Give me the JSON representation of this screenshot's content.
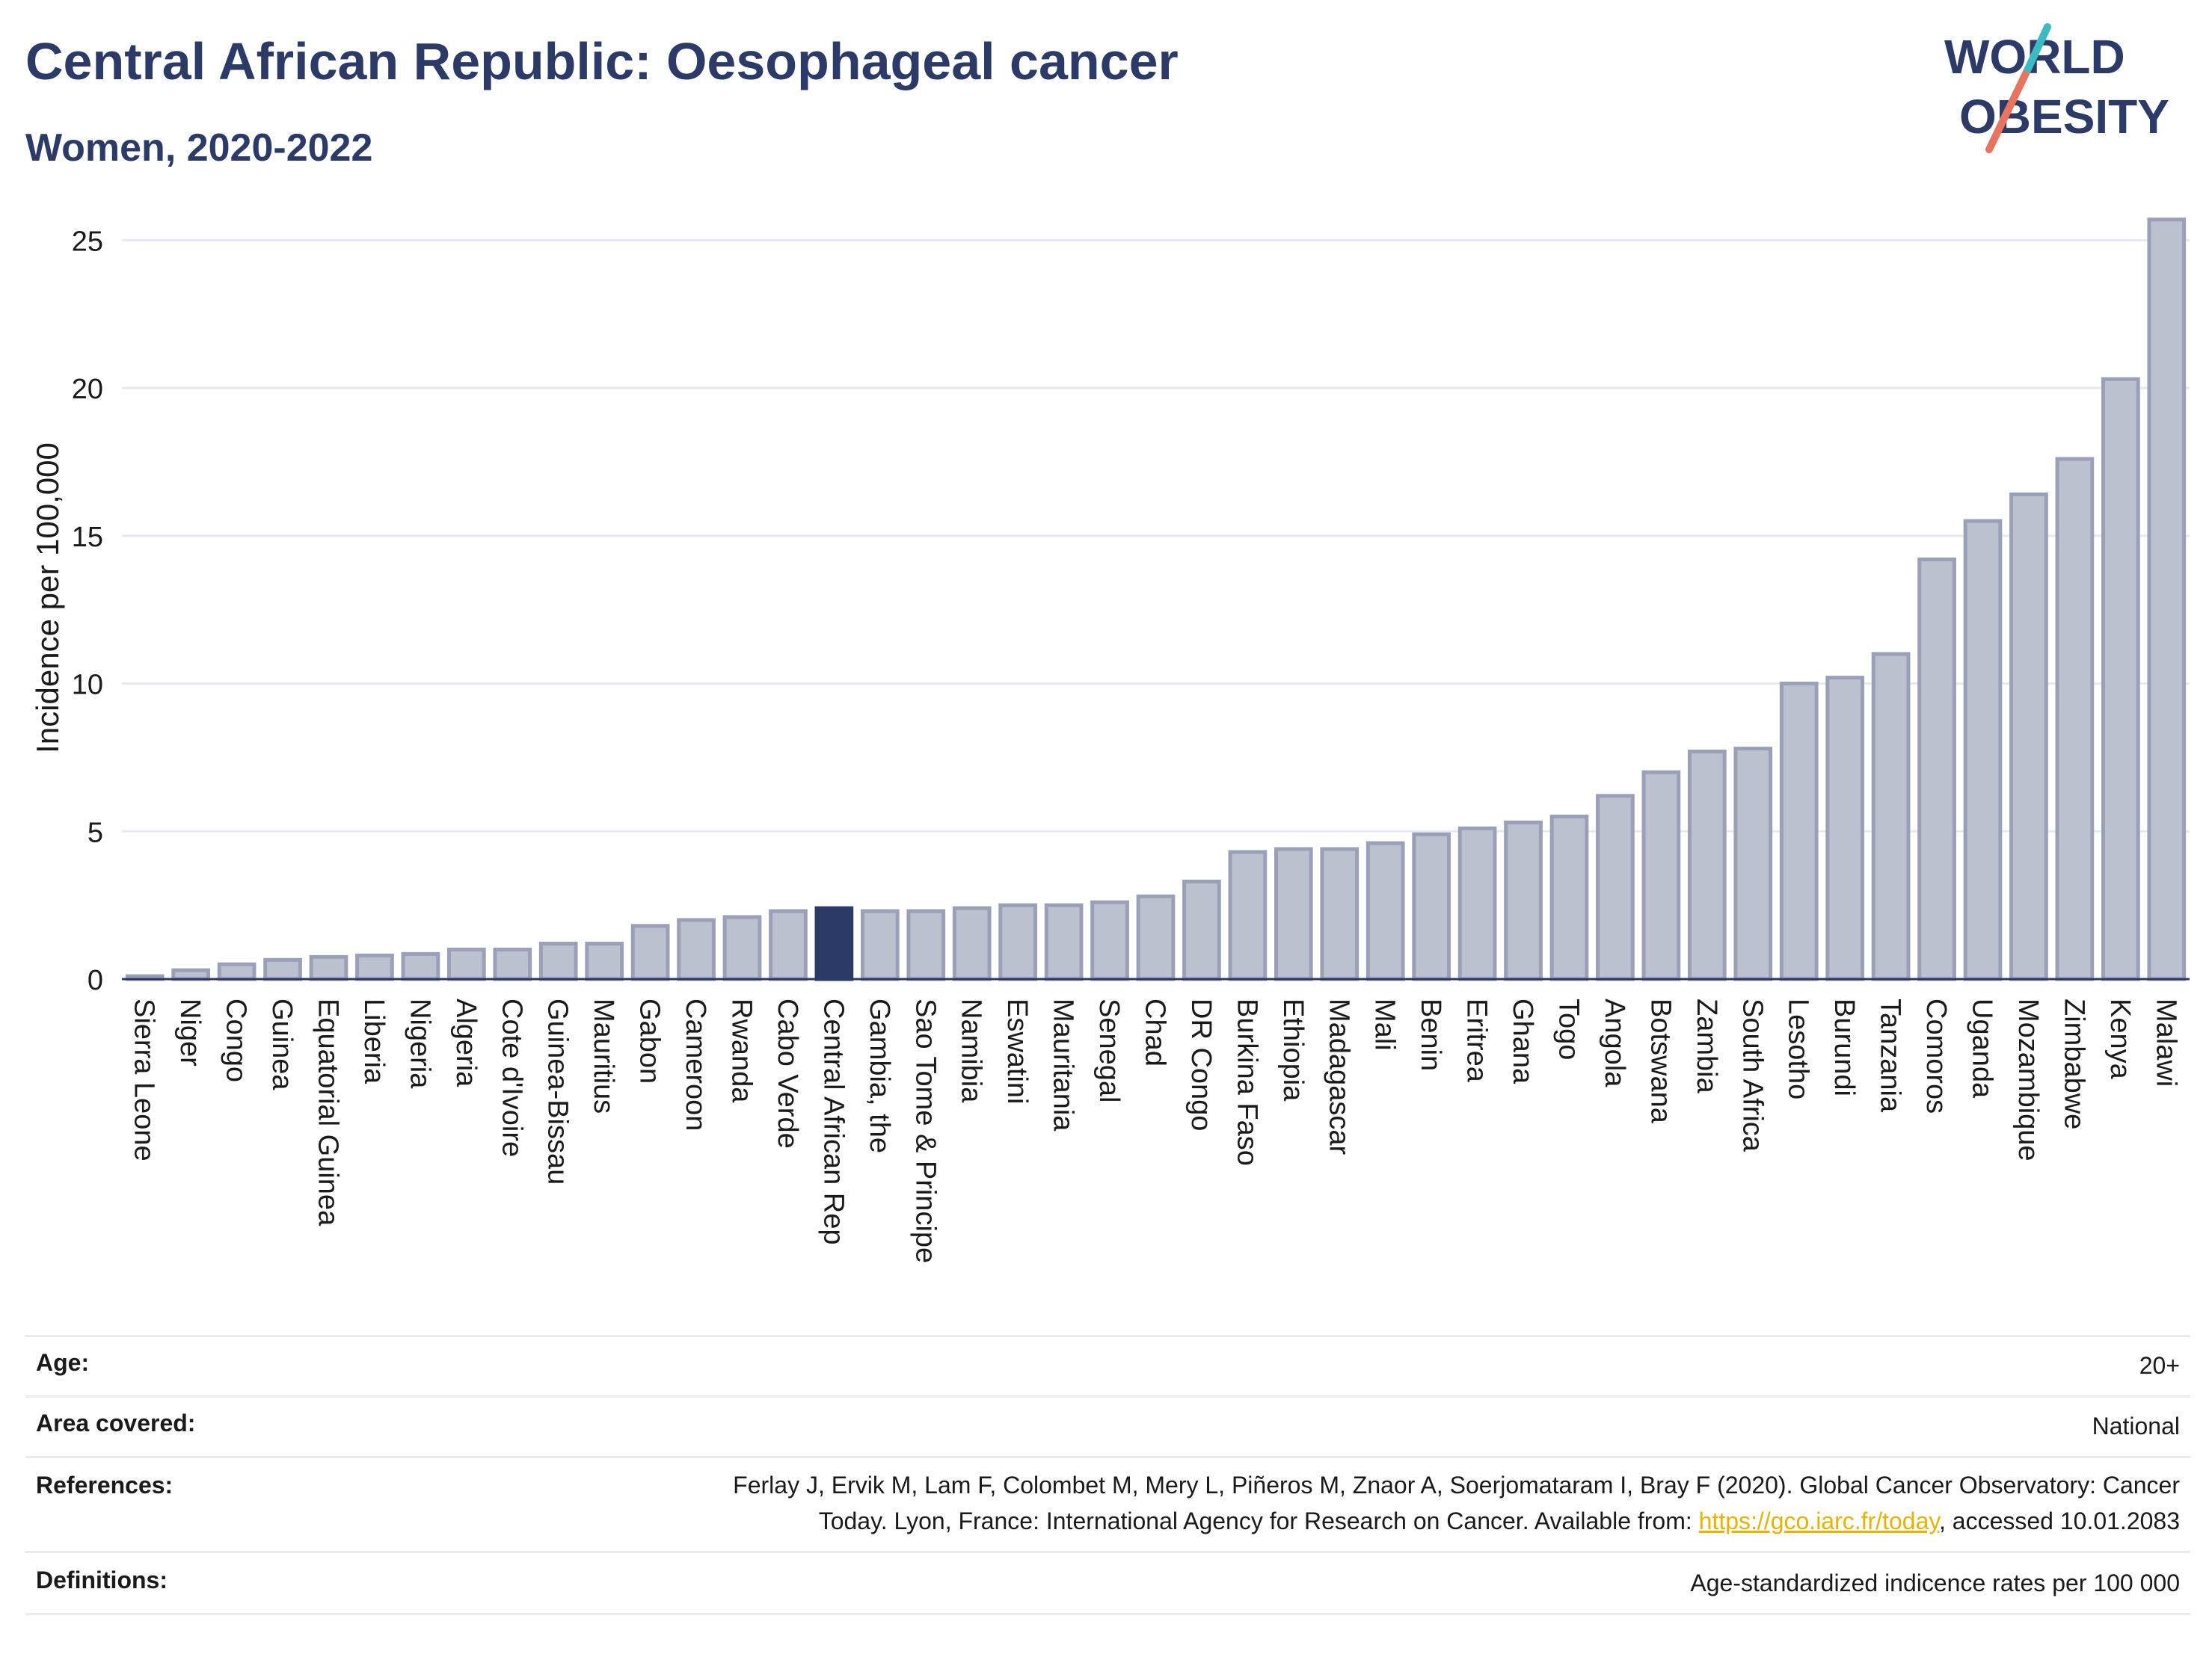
{
  "header": {
    "title": "Central African Republic: Oesophageal cancer",
    "subtitle": "Women, 2020-2022"
  },
  "logo": {
    "line1": "WORLD",
    "line2": "OBESITY"
  },
  "colors": {
    "title": "#2b3a67",
    "bar": "#bcc1d0",
    "bar_border": "#9aa0b8",
    "highlight": "#2b3a67",
    "grid": "#e6e9ef",
    "link": "#e5b300"
  },
  "chart_data": {
    "type": "bar",
    "ylabel": "Incidence per 100,000",
    "ylim": [
      0,
      26.3
    ],
    "yticks": [
      0,
      5,
      10,
      15,
      20,
      25
    ],
    "highlight": "Central African Rep",
    "categories": [
      "Sierra Leone",
      "Niger",
      "Congo",
      "Guinea",
      "Equatorial Guinea",
      "Liberia",
      "Nigeria",
      "Algeria",
      "Cote d'Ivoire",
      "Guinea-Bissau",
      "Mauritius",
      "Gabon",
      "Cameroon",
      "Rwanda",
      "Cabo Verde",
      "Central African Rep",
      "Gambia, the",
      "Sao Tome & Principe",
      "Namibia",
      "Eswatini",
      "Mauritania",
      "Senegal",
      "Chad",
      "DR Congo",
      "Burkina Faso",
      "Ethiopia",
      "Madagascar",
      "Mali",
      "Benin",
      "Eritrea",
      "Ghana",
      "Togo",
      "Angola",
      "Botswana",
      "Zambia",
      "South Africa",
      "Lesotho",
      "Burundi",
      "Tanzania",
      "Comoros",
      "Uganda",
      "Mozambique",
      "Zimbabwe",
      "Kenya",
      "Malawi"
    ],
    "values": [
      0.1,
      0.3,
      0.5,
      0.65,
      0.75,
      0.8,
      0.85,
      1.0,
      1.0,
      1.2,
      1.2,
      1.8,
      2.0,
      2.1,
      2.3,
      2.4,
      2.3,
      2.3,
      2.4,
      2.5,
      2.5,
      2.6,
      2.8,
      3.3,
      4.3,
      4.4,
      4.4,
      4.6,
      4.9,
      5.1,
      5.3,
      5.5,
      6.2,
      7.0,
      7.7,
      7.8,
      10.0,
      10.2,
      11.0,
      14.2,
      15.5,
      16.4,
      17.6,
      20.3,
      25.7
    ]
  },
  "meta": [
    {
      "label": "Age:",
      "value": "20+"
    },
    {
      "label": "Area covered:",
      "value": "National"
    },
    {
      "label": "References:",
      "value_line1": "Ferlay J, Ervik M, Lam F, Colombet M, Mery L, Piñeros M, Znaor A, Soerjomataram I, Bray F (2020). Global Cancer Observatory: Cancer",
      "value_line2_pre": "Today. Lyon, France: International Agency for Research on Cancer. Available from: ",
      "value_link": "https://gco.iarc.fr/today",
      "value_line2_post": ", accessed 10.01.2083"
    },
    {
      "label": "Definitions:",
      "value": "Age-standardized indicence rates per 100 000"
    }
  ]
}
